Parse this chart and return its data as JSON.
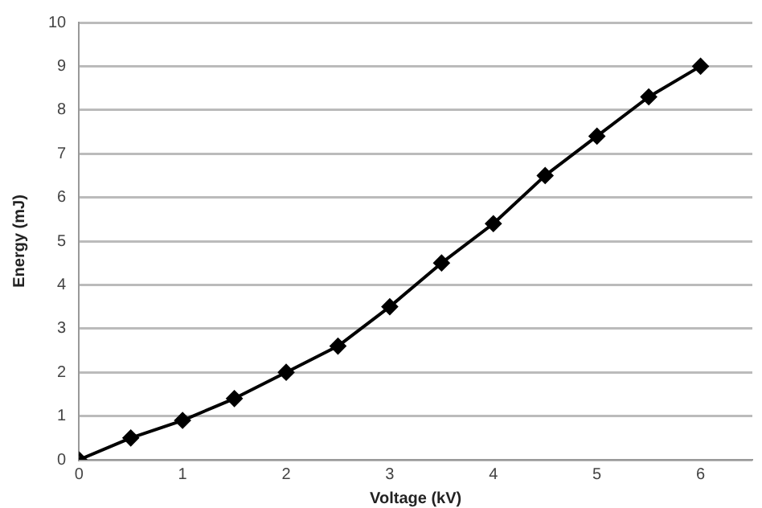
{
  "chart_data": {
    "type": "line",
    "xlabel": "Voltage (kV)",
    "ylabel": "Energy (mJ)",
    "x": [
      0,
      0.5,
      1,
      1.5,
      2,
      2.5,
      3,
      3.5,
      4,
      4.5,
      5,
      5.5,
      6
    ],
    "series": [
      {
        "color": "#000000",
        "values": [
          0,
          0.5,
          0.9,
          1.4,
          2.0,
          2.6,
          3.5,
          4.5,
          5.4,
          6.5,
          7.4,
          8.3,
          9.0
        ]
      }
    ],
    "xlim": [
      0,
      6.5
    ],
    "xticks": [
      0,
      1,
      2,
      3,
      4,
      5,
      6
    ],
    "ylim": [
      0,
      10
    ],
    "yticks": [
      0,
      1,
      2,
      3,
      4,
      5,
      6,
      7,
      8,
      9,
      10
    ],
    "grid": "y",
    "legend": false,
    "marker": "diamond",
    "line_style": "solid"
  }
}
